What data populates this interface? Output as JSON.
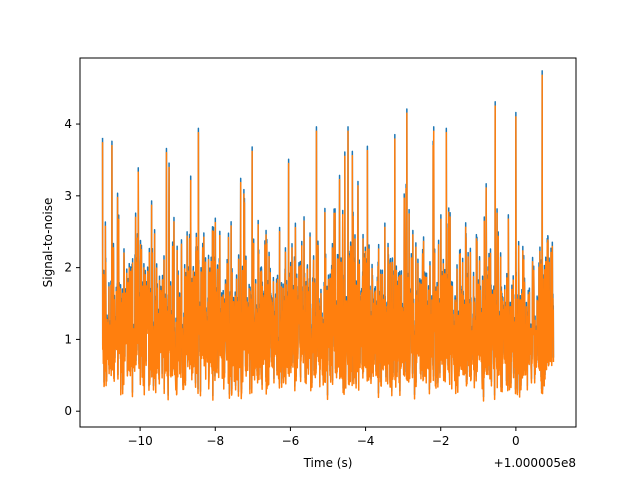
{
  "chart_data": {
    "type": "line",
    "title": "",
    "xlabel": "Time (s)",
    "ylabel": "Signal-to-noise",
    "x_offset_label": "+1.000005e8",
    "xlim": [
      -11.6,
      1.6
    ],
    "ylim": [
      -0.22,
      4.92
    ],
    "x_ticks": [
      -10,
      -8,
      -6,
      -4,
      -2,
      0
    ],
    "x_tick_labels": [
      "−10",
      "−8",
      "−6",
      "−4",
      "−2",
      "0"
    ],
    "y_ticks": [
      0,
      1,
      2,
      3,
      4
    ],
    "y_tick_labels": [
      "0",
      "1",
      "2",
      "3",
      "4"
    ],
    "grid": false,
    "x_range": [
      -11.0,
      1.0
    ],
    "series": [
      {
        "color": "#1f77b4",
        "values": []
      },
      {
        "color": "#ff7f0e",
        "values": []
      }
    ],
    "peaks": [
      {
        "x": -10.75,
        "y": 3.7
      },
      {
        "x": -10.05,
        "y": 3.33
      },
      {
        "x": -9.3,
        "y": 3.6
      },
      {
        "x": -8.45,
        "y": 3.88
      },
      {
        "x": -7.02,
        "y": 3.62
      },
      {
        "x": -6.05,
        "y": 3.45
      },
      {
        "x": -4.55,
        "y": 3.55
      },
      {
        "x": -3.95,
        "y": 3.63
      },
      {
        "x": -2.9,
        "y": 4.15
      },
      {
        "x": -2.2,
        "y": 3.7
      },
      {
        "x": -1.85,
        "y": 3.88
      },
      {
        "x": -0.55,
        "y": 4.25
      },
      {
        "x": 0.0,
        "y": 4.1
      },
      {
        "x": 0.7,
        "y": 4.68
      }
    ]
  }
}
